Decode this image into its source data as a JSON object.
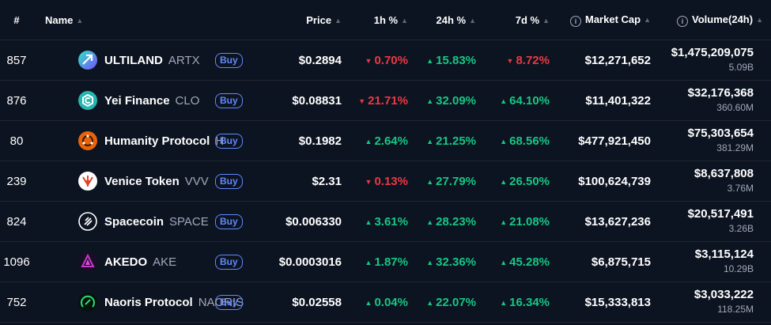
{
  "headers": {
    "rank": "#",
    "name": "Name",
    "price": "Price",
    "h1": "1h %",
    "h24": "24h %",
    "d7": "7d %",
    "mcap": "Market Cap",
    "volume": "Volume(24h)"
  },
  "buy_label": "Buy",
  "colors": {
    "up": "#16c784",
    "down": "#ea3943",
    "buy": "#6188ff",
    "background": "#0d1421"
  },
  "rows": [
    {
      "rank": "857",
      "name": "ULTILAND",
      "symbol": "ARTX",
      "icon": "ultiland-logo-icon",
      "price": "$0.2894",
      "h1": "0.70%",
      "h1_dir": "down",
      "h24": "15.83%",
      "h24_dir": "up",
      "d7": "8.72%",
      "d7_dir": "down",
      "mcap": "$12,271,652",
      "volume": "$1,475,209,075",
      "volume_sub": "5.09B"
    },
    {
      "rank": "876",
      "name": "Yei Finance",
      "symbol": "CLO",
      "icon": "yei-finance-logo-icon",
      "price": "$0.08831",
      "h1": "21.71%",
      "h1_dir": "down",
      "h24": "32.09%",
      "h24_dir": "up",
      "d7": "64.10%",
      "d7_dir": "up",
      "mcap": "$11,401,322",
      "volume": "$32,176,368",
      "volume_sub": "360.60M"
    },
    {
      "rank": "80",
      "name": "Humanity Protocol",
      "symbol": "H",
      "icon": "humanity-protocol-logo-icon",
      "price": "$0.1982",
      "h1": "2.64%",
      "h1_dir": "up",
      "h24": "21.25%",
      "h24_dir": "up",
      "d7": "68.56%",
      "d7_dir": "up",
      "mcap": "$477,921,450",
      "volume": "$75,303,654",
      "volume_sub": "381.29M"
    },
    {
      "rank": "239",
      "name": "Venice Token",
      "symbol": "VVV",
      "icon": "venice-token-logo-icon",
      "price": "$2.31",
      "h1": "0.13%",
      "h1_dir": "down",
      "h24": "27.79%",
      "h24_dir": "up",
      "d7": "26.50%",
      "d7_dir": "up",
      "mcap": "$100,624,739",
      "volume": "$8,637,808",
      "volume_sub": "3.76M"
    },
    {
      "rank": "824",
      "name": "Spacecoin",
      "symbol": "SPACE",
      "icon": "spacecoin-logo-icon",
      "price": "$0.006330",
      "h1": "3.61%",
      "h1_dir": "up",
      "h24": "28.23%",
      "h24_dir": "up",
      "d7": "21.08%",
      "d7_dir": "up",
      "mcap": "$13,627,236",
      "volume": "$20,517,491",
      "volume_sub": "3.26B"
    },
    {
      "rank": "1096",
      "name": "AKEDO",
      "symbol": "AKE",
      "icon": "akedo-logo-icon",
      "price": "$0.0003016",
      "h1": "1.87%",
      "h1_dir": "up",
      "h24": "32.36%",
      "h24_dir": "up",
      "d7": "45.28%",
      "d7_dir": "up",
      "mcap": "$6,875,715",
      "volume": "$3,115,124",
      "volume_sub": "10.29B"
    },
    {
      "rank": "752",
      "name": "Naoris Protocol",
      "symbol": "NAORIS",
      "icon": "naoris-protocol-logo-icon",
      "price": "$0.02558",
      "h1": "0.04%",
      "h1_dir": "up",
      "h24": "22.07%",
      "h24_dir": "up",
      "d7": "16.34%",
      "d7_dir": "up",
      "mcap": "$15,333,813",
      "volume": "$3,033,222",
      "volume_sub": "118.25M"
    }
  ]
}
